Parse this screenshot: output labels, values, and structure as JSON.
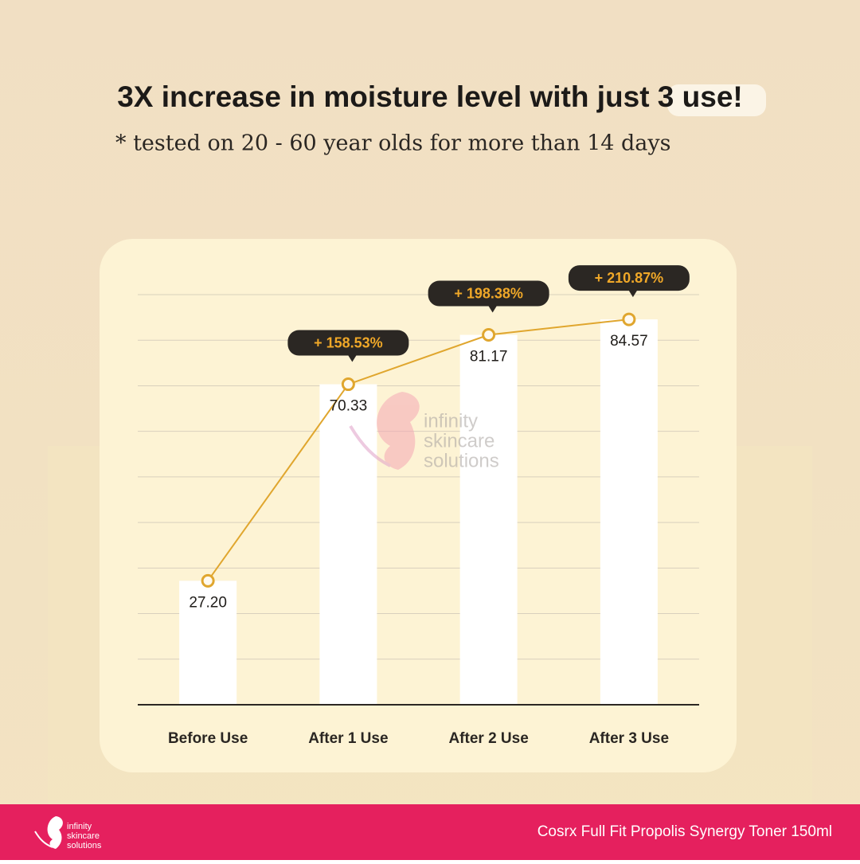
{
  "title": "3X increase in moisture level with just 3 use!",
  "subtitle": "* tested on 20 - 60 year olds for more than 14 days",
  "watermark": [
    "infinity",
    "skincare",
    "solutions"
  ],
  "footer": {
    "logo": [
      "infinity",
      "skincare",
      "solutions"
    ],
    "product": "Cosrx Full Fit Propolis Synergy Toner 150ml"
  },
  "chart_data": {
    "type": "bar-line",
    "categories": [
      "Before Use",
      "After 1 Use",
      "After 2 Use",
      "After 3 Use"
    ],
    "values": [
      27.2,
      70.33,
      81.17,
      84.57
    ],
    "value_labels": [
      "27.20",
      "70.33",
      "81.17",
      "84.57"
    ],
    "annotations": [
      null,
      "+ 158.53%",
      "+ 198.38%",
      "+ 210.87%"
    ],
    "bar_color": "#ffffff",
    "line_color": "#e0a62e",
    "ylim": [
      0,
      90
    ],
    "yticks": [
      0,
      10,
      20,
      30,
      40,
      50,
      60,
      70,
      80,
      90
    ],
    "grid": true
  }
}
